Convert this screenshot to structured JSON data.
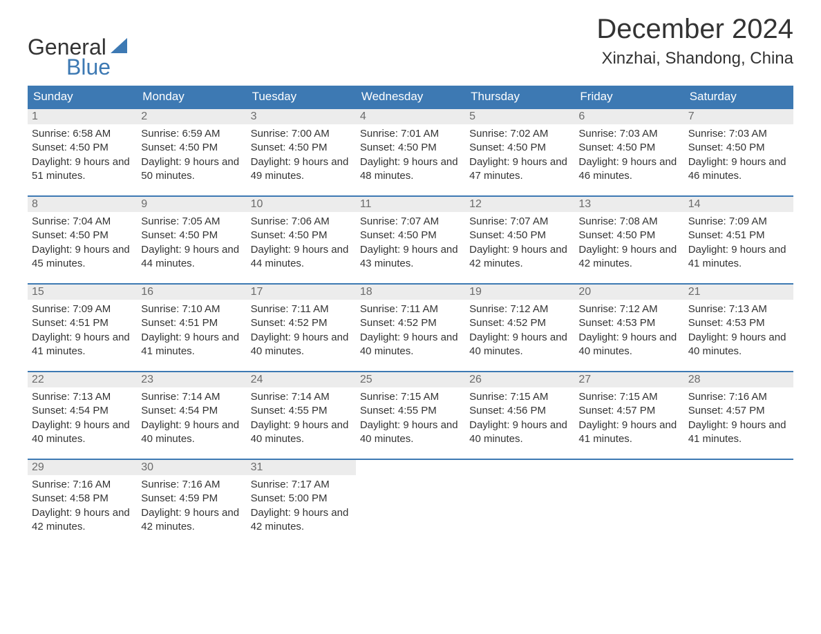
{
  "logo": {
    "word1": "General",
    "word2": "Blue"
  },
  "title": {
    "month": "December 2024",
    "location": "Xinzhai, Shandong, China"
  },
  "style": {
    "header_bg": "#3d79b3",
    "header_fg": "#ffffff",
    "daynum_bg": "#ececec",
    "daynum_fg": "#6b6b6b",
    "row_border": "#3d79b3",
    "body_bg": "#ffffff",
    "text_fg": "#333333",
    "logo_blue": "#3d79b3",
    "title_fontsize": 40,
    "location_fontsize": 24,
    "header_fontsize": 17,
    "daynum_fontsize": 16,
    "detail_fontsize": 15
  },
  "weekdays": [
    "Sunday",
    "Monday",
    "Tuesday",
    "Wednesday",
    "Thursday",
    "Friday",
    "Saturday"
  ],
  "labels": {
    "sunrise": "Sunrise:",
    "sunset": "Sunset:",
    "daylight": "Daylight:"
  },
  "days": [
    {
      "n": "1",
      "sunrise": "6:58 AM",
      "sunset": "4:50 PM",
      "daylight": "9 hours and 51 minutes."
    },
    {
      "n": "2",
      "sunrise": "6:59 AM",
      "sunset": "4:50 PM",
      "daylight": "9 hours and 50 minutes."
    },
    {
      "n": "3",
      "sunrise": "7:00 AM",
      "sunset": "4:50 PM",
      "daylight": "9 hours and 49 minutes."
    },
    {
      "n": "4",
      "sunrise": "7:01 AM",
      "sunset": "4:50 PM",
      "daylight": "9 hours and 48 minutes."
    },
    {
      "n": "5",
      "sunrise": "7:02 AM",
      "sunset": "4:50 PM",
      "daylight": "9 hours and 47 minutes."
    },
    {
      "n": "6",
      "sunrise": "7:03 AM",
      "sunset": "4:50 PM",
      "daylight": "9 hours and 46 minutes."
    },
    {
      "n": "7",
      "sunrise": "7:03 AM",
      "sunset": "4:50 PM",
      "daylight": "9 hours and 46 minutes."
    },
    {
      "n": "8",
      "sunrise": "7:04 AM",
      "sunset": "4:50 PM",
      "daylight": "9 hours and 45 minutes."
    },
    {
      "n": "9",
      "sunrise": "7:05 AM",
      "sunset": "4:50 PM",
      "daylight": "9 hours and 44 minutes."
    },
    {
      "n": "10",
      "sunrise": "7:06 AM",
      "sunset": "4:50 PM",
      "daylight": "9 hours and 44 minutes."
    },
    {
      "n": "11",
      "sunrise": "7:07 AM",
      "sunset": "4:50 PM",
      "daylight": "9 hours and 43 minutes."
    },
    {
      "n": "12",
      "sunrise": "7:07 AM",
      "sunset": "4:50 PM",
      "daylight": "9 hours and 42 minutes."
    },
    {
      "n": "13",
      "sunrise": "7:08 AM",
      "sunset": "4:50 PM",
      "daylight": "9 hours and 42 minutes."
    },
    {
      "n": "14",
      "sunrise": "7:09 AM",
      "sunset": "4:51 PM",
      "daylight": "9 hours and 41 minutes."
    },
    {
      "n": "15",
      "sunrise": "7:09 AM",
      "sunset": "4:51 PM",
      "daylight": "9 hours and 41 minutes."
    },
    {
      "n": "16",
      "sunrise": "7:10 AM",
      "sunset": "4:51 PM",
      "daylight": "9 hours and 41 minutes."
    },
    {
      "n": "17",
      "sunrise": "7:11 AM",
      "sunset": "4:52 PM",
      "daylight": "9 hours and 40 minutes."
    },
    {
      "n": "18",
      "sunrise": "7:11 AM",
      "sunset": "4:52 PM",
      "daylight": "9 hours and 40 minutes."
    },
    {
      "n": "19",
      "sunrise": "7:12 AM",
      "sunset": "4:52 PM",
      "daylight": "9 hours and 40 minutes."
    },
    {
      "n": "20",
      "sunrise": "7:12 AM",
      "sunset": "4:53 PM",
      "daylight": "9 hours and 40 minutes."
    },
    {
      "n": "21",
      "sunrise": "7:13 AM",
      "sunset": "4:53 PM",
      "daylight": "9 hours and 40 minutes."
    },
    {
      "n": "22",
      "sunrise": "7:13 AM",
      "sunset": "4:54 PM",
      "daylight": "9 hours and 40 minutes."
    },
    {
      "n": "23",
      "sunrise": "7:14 AM",
      "sunset": "4:54 PM",
      "daylight": "9 hours and 40 minutes."
    },
    {
      "n": "24",
      "sunrise": "7:14 AM",
      "sunset": "4:55 PM",
      "daylight": "9 hours and 40 minutes."
    },
    {
      "n": "25",
      "sunrise": "7:15 AM",
      "sunset": "4:55 PM",
      "daylight": "9 hours and 40 minutes."
    },
    {
      "n": "26",
      "sunrise": "7:15 AM",
      "sunset": "4:56 PM",
      "daylight": "9 hours and 40 minutes."
    },
    {
      "n": "27",
      "sunrise": "7:15 AM",
      "sunset": "4:57 PM",
      "daylight": "9 hours and 41 minutes."
    },
    {
      "n": "28",
      "sunrise": "7:16 AM",
      "sunset": "4:57 PM",
      "daylight": "9 hours and 41 minutes."
    },
    {
      "n": "29",
      "sunrise": "7:16 AM",
      "sunset": "4:58 PM",
      "daylight": "9 hours and 42 minutes."
    },
    {
      "n": "30",
      "sunrise": "7:16 AM",
      "sunset": "4:59 PM",
      "daylight": "9 hours and 42 minutes."
    },
    {
      "n": "31",
      "sunrise": "7:17 AM",
      "sunset": "5:00 PM",
      "daylight": "9 hours and 42 minutes."
    }
  ],
  "grid": {
    "weeks": 5,
    "cols": 7,
    "first_weekday_index": 0,
    "total_days": 31
  }
}
